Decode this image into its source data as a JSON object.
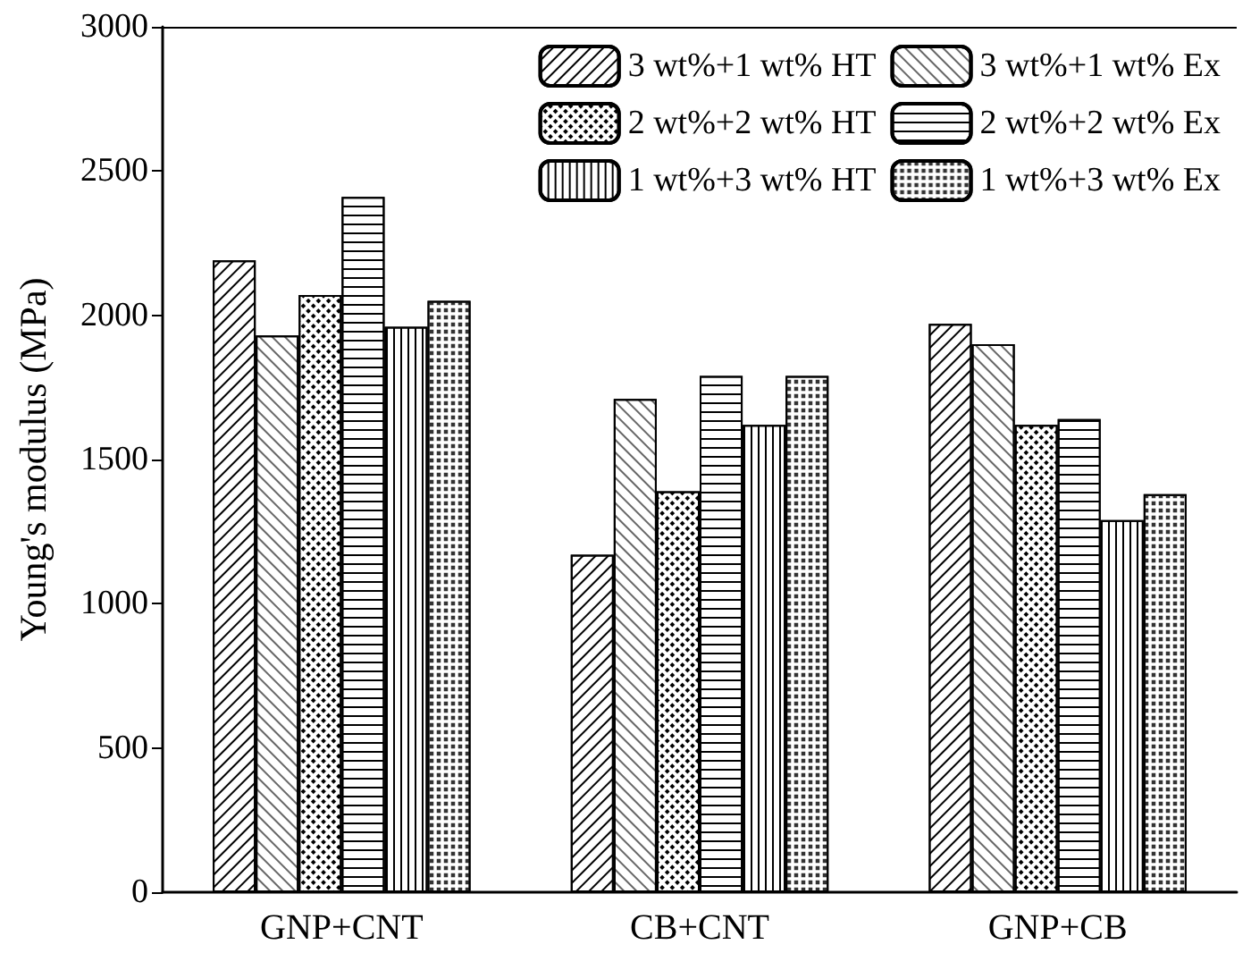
{
  "chart_data": {
    "type": "bar",
    "ylabel": "Young's modulus (MPa)",
    "categories": [
      "GNP+CNT",
      "CB+CNT",
      "GNP+CB"
    ],
    "series": [
      {
        "name": "3 wt%+1 wt% HT",
        "color": "#ffffff",
        "values": [
          2190,
          1170,
          1970
        ]
      },
      {
        "name": "3 wt%+1 wt% Ex",
        "color": "#ffffff",
        "values": [
          1930,
          1710,
          1900
        ]
      },
      {
        "name": "2 wt%+2 wt% HT",
        "color": "#ffffff",
        "values": [
          2070,
          1390,
          1620
        ]
      },
      {
        "name": "2 wt%+2 wt% Ex",
        "color": "#ffffff",
        "values": [
          2410,
          1790,
          1640
        ]
      },
      {
        "name": "1 wt%+3 wt% HT",
        "color": "#ffffff",
        "values": [
          1960,
          1620,
          1290
        ]
      },
      {
        "name": "1 wt%+3 wt% Ex",
        "color": "#ffffff",
        "values": [
          2050,
          1790,
          1380
        ]
      }
    ],
    "ylim": [
      0,
      3000
    ],
    "yticks": [
      0,
      500,
      1000,
      1500,
      2000,
      2500,
      3000
    ],
    "grid": false,
    "legend": "top right"
  }
}
